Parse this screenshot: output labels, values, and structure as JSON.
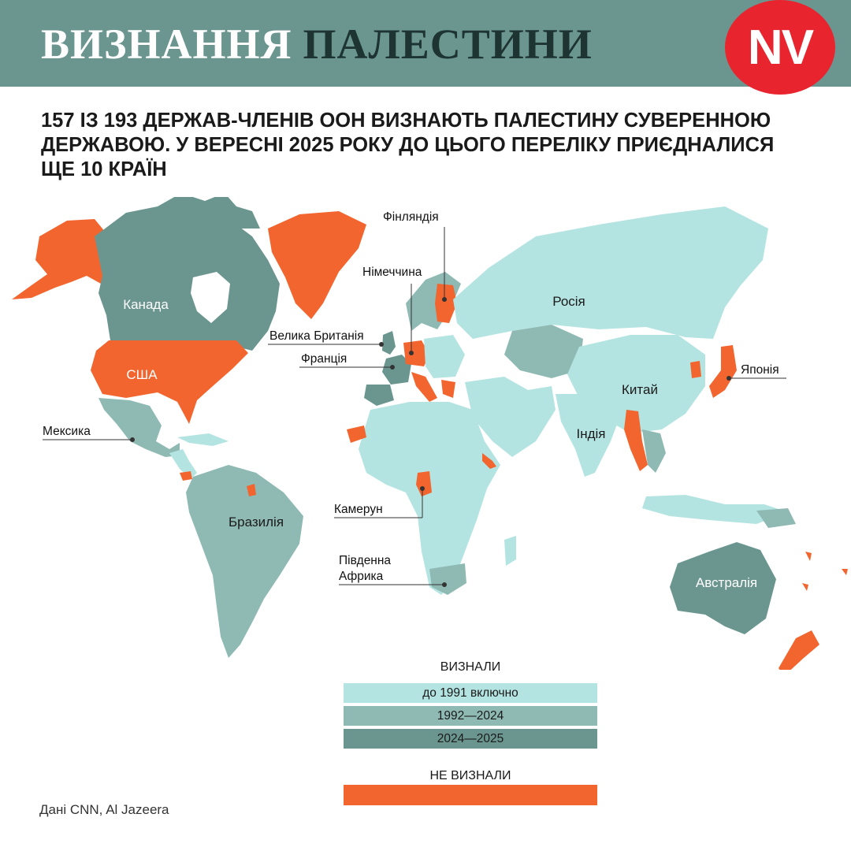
{
  "header": {
    "title_part1": "ВИЗНАННЯ",
    "title_part2": "ПАЛЕСТИНИ",
    "logo": "NV",
    "background": "#6b9690",
    "logo_color": "#e8242e"
  },
  "subtitle": "157 ІЗ 193 ДЕРЖАВ-ЧЛЕНІВ ООН ВИЗНАЮТЬ ПАЛЕСТИНУ СУВЕРЕННОЮ ДЕРЖАВОЮ. У ВЕРЕСНІ 2025 РОКУ ДО ЦЬОГО ПЕРЕЛІКУ ПРИЄДНАЛИСЯ ЩЕ 10 КРАЇН",
  "colors": {
    "until_1991": "#b4e4e1",
    "from_1992_to_2024": "#8fbab4",
    "from_2024_to_2025": "#6b9690",
    "not_recognized": "#f2652f"
  },
  "map_labels": {
    "canada": "Канада",
    "usa": "США",
    "mexico": "Мексика",
    "brazil": "Бразилія",
    "uk": "Велика Британія",
    "france": "Франція",
    "germany": "Німеччина",
    "finland": "Фінляндія",
    "russia": "Росія",
    "china": "Китай",
    "india": "Індія",
    "japan": "Японія",
    "cameroon": "Камерун",
    "south_africa_line1": "Південна",
    "south_africa_line2": "Африка",
    "australia": "Австралія"
  },
  "legend": {
    "recognized_title": "ВИЗНАЛИ",
    "items": [
      {
        "label": "до 1991 включно",
        "color": "#b4e4e1"
      },
      {
        "label": "1992—2024",
        "color": "#8fbab4"
      },
      {
        "label": "2024—2025",
        "color": "#6b9690"
      }
    ],
    "not_recognized_title": "НЕ ВИЗНАЛИ",
    "not_recognized_color": "#f2652f"
  },
  "source": "Дані CNN, Al Jazeera"
}
